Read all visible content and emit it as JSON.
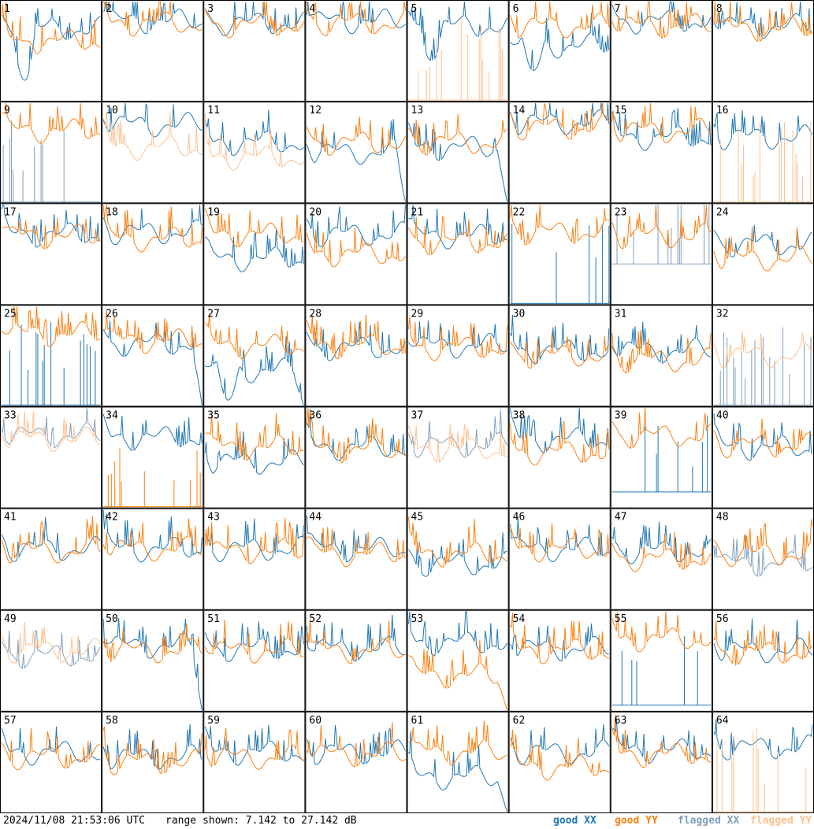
{
  "footer": {
    "timestamp": "2024/11/08 21:53:06 UTC",
    "range": "range shown: 7.142 to 27.142 dB",
    "legend": {
      "good_xx": "good XX",
      "good_yy": "good YY",
      "flagged_xx": "flagged XX",
      "flagged_yy": "flagged YY"
    }
  },
  "colors": {
    "good_xx": "#1f77b4",
    "good_yy": "#ff7f0e",
    "flagged_xx": "#7f9fbf",
    "flagged_yy": "#ffc08f"
  },
  "chart_data": {
    "type": "line",
    "layout": "8x8 small multiples",
    "y_unit": "dB",
    "ylim": [
      7.142,
      27.142
    ],
    "series_labels": [
      "good XX",
      "good YY",
      "flagged XX",
      "flagged YY"
    ],
    "panels": [
      {
        "id": "1",
        "xx": "good",
        "yy": "good",
        "xx_level": 0.72,
        "yy_level": 0.6,
        "xx_dip": 0.2,
        "yy_dip": 0.6
      },
      {
        "id": "2",
        "xx": "good",
        "yy": "good",
        "xx_level": 0.8,
        "yy_level": 0.78
      },
      {
        "id": "3",
        "xx": "good",
        "yy": "good",
        "xx_level": 0.78,
        "yy_level": 0.76
      },
      {
        "id": "4",
        "xx": "good",
        "yy": "good",
        "xx_level": 0.8,
        "yy_level": 0.78
      },
      {
        "id": "5",
        "xx": "good",
        "yy": "flagged",
        "xx_level": 0.75,
        "yy_level": 0.0,
        "xx_dip": 0.4,
        "yy_spiky": true
      },
      {
        "id": "6",
        "xx": "good",
        "yy": "good",
        "xx_level": 0.55,
        "yy_level": 0.75,
        "xx_dip": 0.3
      },
      {
        "id": "7",
        "xx": "good",
        "yy": "good",
        "xx_level": 0.8,
        "yy_level": 0.75
      },
      {
        "id": "8",
        "xx": "good",
        "yy": "good",
        "xx_level": 0.75,
        "yy_level": 0.72
      },
      {
        "id": "9",
        "xx": "flagged",
        "yy": "good",
        "xx_level": 0.0,
        "yy_level": 0.72,
        "xx_spiky": true
      },
      {
        "id": "10",
        "xx": "good",
        "yy": "flagged",
        "xx_level": 0.78,
        "yy_level": 0.55
      },
      {
        "id": "11",
        "xx": "good",
        "yy": "flagged",
        "xx_level": 0.6,
        "yy_level": 0.45
      },
      {
        "id": "12",
        "xx": "good",
        "yy": "good",
        "xx_level": 0.5,
        "yy_level": 0.6,
        "xx_drop_end": true
      },
      {
        "id": "13",
        "xx": "good",
        "yy": "good",
        "xx_level": 0.55,
        "yy_level": 0.6,
        "xx_drop_end": true
      },
      {
        "id": "14",
        "xx": "good",
        "yy": "good",
        "xx_level": 0.8,
        "yy_level": 0.75
      },
      {
        "id": "15",
        "xx": "good",
        "yy": "good",
        "xx_level": 0.65,
        "yy_level": 0.72
      },
      {
        "id": "16",
        "xx": "good",
        "yy": "flagged",
        "xx_level": 0.65,
        "yy_level": 0.0,
        "yy_spiky": true
      },
      {
        "id": "17",
        "xx": "good",
        "yy": "good",
        "xx_level": 0.7,
        "yy_level": 0.68
      },
      {
        "id": "18",
        "xx": "good",
        "yy": "good",
        "xx_level": 0.72,
        "yy_level": 0.65
      },
      {
        "id": "19",
        "xx": "good",
        "yy": "good",
        "xx_level": 0.45,
        "yy_level": 0.7
      },
      {
        "id": "20",
        "xx": "good",
        "yy": "good",
        "xx_level": 0.7,
        "yy_level": 0.5
      },
      {
        "id": "21",
        "xx": "good",
        "yy": "good",
        "xx_level": 0.68,
        "yy_level": 0.62
      },
      {
        "id": "22",
        "xx": "good",
        "yy": "good",
        "xx_level": 0.0,
        "yy_level": 0.72,
        "xx_spiky": true
      },
      {
        "id": "23",
        "xx": "flagged",
        "yy": "good",
        "xx_level": 0.4,
        "yy_level": 0.68,
        "xx_spiky": true
      },
      {
        "id": "24",
        "xx": "good",
        "yy": "good",
        "xx_level": 0.6,
        "yy_level": 0.45
      },
      {
        "id": "25",
        "xx": "good",
        "yy": "good",
        "xx_level": 0.0,
        "yy_level": 0.72,
        "xx_spiky": true
      },
      {
        "id": "26",
        "xx": "good",
        "yy": "good",
        "xx_level": 0.62,
        "yy_level": 0.65,
        "xx_drop_end": true
      },
      {
        "id": "27",
        "xx": "good",
        "yy": "good",
        "xx_level": 0.35,
        "yy_level": 0.6,
        "xx_dip": 0.05,
        "xx_drop_end": true
      },
      {
        "id": "28",
        "xx": "good",
        "yy": "good",
        "xx_level": 0.58,
        "yy_level": 0.6
      },
      {
        "id": "29",
        "xx": "good",
        "yy": "good",
        "xx_level": 0.6,
        "yy_level": 0.58
      },
      {
        "id": "30",
        "xx": "good",
        "yy": "good",
        "xx_level": 0.55,
        "yy_level": 0.5
      },
      {
        "id": "31",
        "xx": "good",
        "yy": "good",
        "xx_level": 0.55,
        "yy_level": 0.45
      },
      {
        "id": "32",
        "xx": "flagged",
        "yy": "flagged",
        "xx_level": 0.0,
        "yy_level": 0.5,
        "xx_spiky": true
      },
      {
        "id": "33",
        "xx": "flagged",
        "yy": "flagged",
        "xx_level": 0.72,
        "yy_level": 0.68
      },
      {
        "id": "34",
        "xx": "good",
        "yy": "good",
        "xx_level": 0.7,
        "yy_level": 0.0,
        "yy_spiky": true
      },
      {
        "id": "35",
        "xx": "good",
        "yy": "good",
        "xx_level": 0.45,
        "yy_level": 0.6
      },
      {
        "id": "36",
        "xx": "good",
        "yy": "good",
        "xx_level": 0.6,
        "yy_level": 0.58
      },
      {
        "id": "37",
        "xx": "flagged",
        "yy": "flagged",
        "xx_level": 0.62,
        "yy_level": 0.58
      },
      {
        "id": "38",
        "xx": "good",
        "yy": "good",
        "xx_level": 0.68,
        "yy_level": 0.55
      },
      {
        "id": "39",
        "xx": "good",
        "yy": "good",
        "xx_level": 0.15,
        "yy_level": 0.72,
        "xx_spiky": true
      },
      {
        "id": "40",
        "xx": "good",
        "yy": "good",
        "xx_level": 0.6,
        "yy_level": 0.62
      },
      {
        "id": "41",
        "xx": "good",
        "yy": "good",
        "xx_level": 0.6,
        "yy_level": 0.58
      },
      {
        "id": "42",
        "xx": "good",
        "yy": "good",
        "xx_level": 0.6,
        "yy_level": 0.6
      },
      {
        "id": "43",
        "xx": "good",
        "yy": "good",
        "xx_level": 0.6,
        "yy_level": 0.58
      },
      {
        "id": "44",
        "xx": "good",
        "yy": "good",
        "xx_level": 0.6,
        "yy_level": 0.55
      },
      {
        "id": "45",
        "xx": "good",
        "yy": "good",
        "xx_level": 0.45,
        "yy_level": 0.55
      },
      {
        "id": "46",
        "xx": "good",
        "yy": "good",
        "xx_level": 0.6,
        "yy_level": 0.6
      },
      {
        "id": "47",
        "xx": "good",
        "yy": "good",
        "xx_level": 0.58,
        "yy_level": 0.5
      },
      {
        "id": "48",
        "xx": "flagged",
        "yy": "good",
        "xx_level": 0.45,
        "yy_level": 0.55
      },
      {
        "id": "49",
        "xx": "flagged",
        "yy": "flagged",
        "xx_level": 0.55,
        "yy_level": 0.6
      },
      {
        "id": "50",
        "xx": "good",
        "yy": "good",
        "xx_level": 0.65,
        "yy_level": 0.6,
        "xx_drop_end": true
      },
      {
        "id": "51",
        "xx": "good",
        "yy": "good",
        "xx_level": 0.62,
        "yy_level": 0.6
      },
      {
        "id": "52",
        "xx": "good",
        "yy": "good",
        "xx_level": 0.62,
        "yy_level": 0.6
      },
      {
        "id": "53",
        "xx": "good",
        "yy": "good",
        "xx_level": 0.68,
        "yy_level": 0.35,
        "yy_drop_end": true
      },
      {
        "id": "54",
        "xx": "good",
        "yy": "good",
        "xx_level": 0.62,
        "yy_level": 0.6
      },
      {
        "id": "55",
        "xx": "good",
        "yy": "good",
        "xx_level": 0.05,
        "yy_level": 0.72,
        "xx_spiky": true
      },
      {
        "id": "56",
        "xx": "good",
        "yy": "good",
        "xx_level": 0.6,
        "yy_level": 0.58
      },
      {
        "id": "57",
        "xx": "good",
        "yy": "good",
        "xx_level": 0.6,
        "yy_level": 0.55
      },
      {
        "id": "58",
        "xx": "good",
        "yy": "good",
        "xx_level": 0.55,
        "yy_level": 0.5
      },
      {
        "id": "59",
        "xx": "good",
        "yy": "good",
        "xx_level": 0.6,
        "yy_level": 0.55
      },
      {
        "id": "60",
        "xx": "good",
        "yy": "good",
        "xx_level": 0.6,
        "yy_level": 0.58
      },
      {
        "id": "61",
        "xx": "good",
        "yy": "good",
        "xx_level": 0.35,
        "yy_level": 0.6,
        "xx_drop_end": true
      },
      {
        "id": "62",
        "xx": "good",
        "yy": "good",
        "xx_level": 0.6,
        "yy_level": 0.45
      },
      {
        "id": "63",
        "xx": "good",
        "yy": "good",
        "xx_level": 0.62,
        "yy_level": 0.58
      },
      {
        "id": "64",
        "xx": "good",
        "yy": "flagged",
        "xx_level": 0.65,
        "yy_level": 0.0,
        "yy_spiky": true
      }
    ]
  }
}
